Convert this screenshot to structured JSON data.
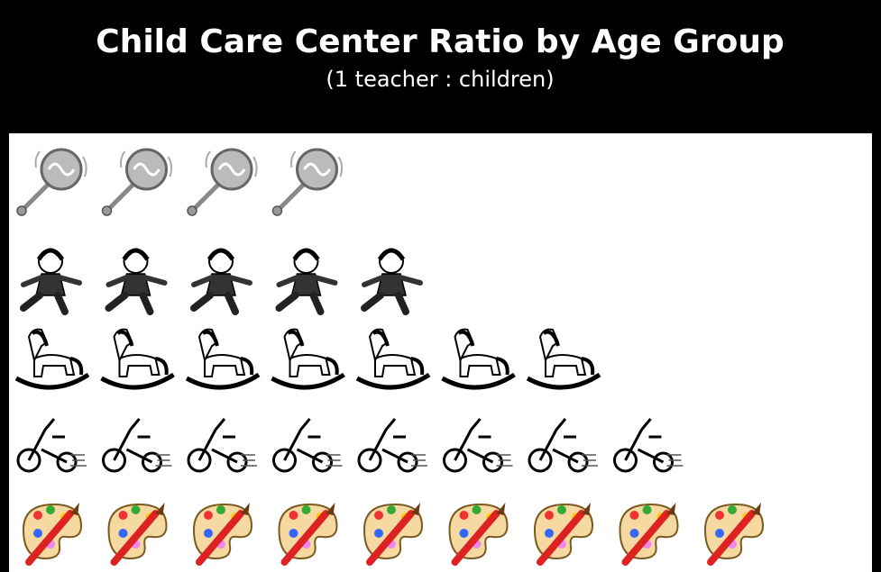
{
  "chart_data": {
    "type": "pictograph",
    "title": "Child Care Center Ratio by Age Group",
    "subtitle": "(1  teacher : children)",
    "categories": [
      null,
      null,
      null,
      null,
      null
    ],
    "values": [
      4,
      5,
      7,
      8,
      9
    ]
  }
}
